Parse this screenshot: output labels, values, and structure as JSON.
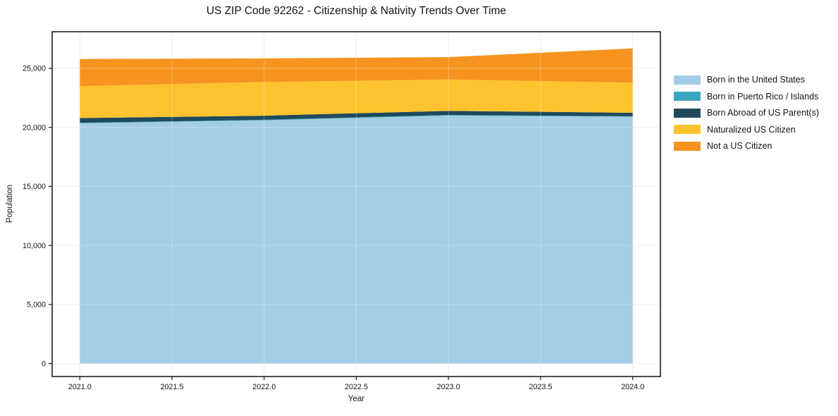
{
  "chart_data": {
    "type": "area",
    "stacked": true,
    "title": "US ZIP Code 92262 - Citizenship & Nativity Trends Over Time",
    "xlabel": "Year",
    "ylabel": "Population",
    "x": [
      2021,
      2022,
      2023,
      2024
    ],
    "series": [
      {
        "name": "Born in the United States",
        "color": "#a3cde4",
        "values": [
          20350,
          20600,
          21000,
          20900
        ]
      },
      {
        "name": "Born in Puerto Rico / Islands",
        "color": "#3aa5bf",
        "values": [
          40,
          40,
          50,
          40
        ]
      },
      {
        "name": "Born Abroad of US Parent(s)",
        "color": "#1f4a5c",
        "values": [
          400,
          350,
          350,
          300
        ]
      },
      {
        "name": "Naturalized US Citizen",
        "color": "#fdc32e",
        "values": [
          2700,
          2850,
          2650,
          2550
        ]
      },
      {
        "name": "Not a US Citizen",
        "color": "#f6941f",
        "values": [
          2300,
          2000,
          1900,
          2900
        ]
      }
    ],
    "xlim": [
      2020.85,
      2024.15
    ],
    "ylim": [
      -1100,
      28100
    ],
    "xticks": [
      2021.0,
      2021.5,
      2022.0,
      2022.5,
      2023.0,
      2023.5,
      2024.0
    ],
    "xtick_labels": [
      "2021.0",
      "2021.5",
      "2022.0",
      "2022.5",
      "2023.0",
      "2023.5",
      "2024.0"
    ],
    "yticks": [
      0,
      5000,
      10000,
      15000,
      20000,
      25000
    ],
    "ytick_labels": [
      "0",
      "5,000",
      "10,000",
      "15,000",
      "20,000",
      "25,000"
    ],
    "grid": true,
    "legend_position": "right of plot",
    "colors": {
      "grid_line": "#e7e7e7",
      "frame": "#000000",
      "tick": "#1a1a1a",
      "text": "#141414",
      "background": "#ffffff"
    }
  }
}
